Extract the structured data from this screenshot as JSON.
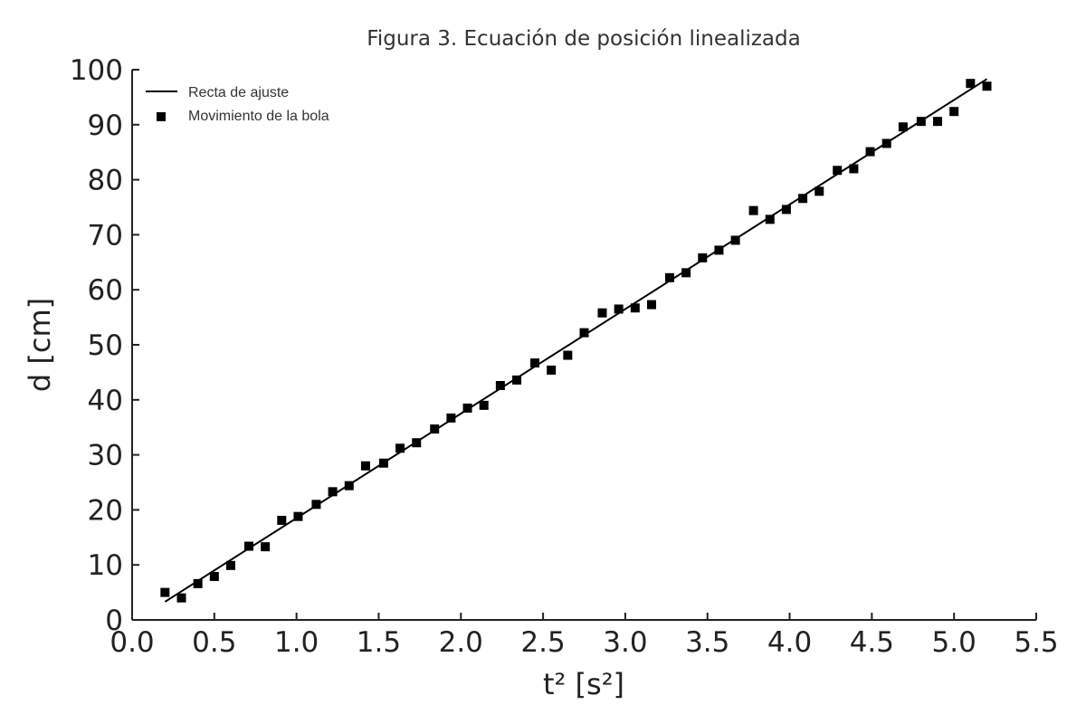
{
  "chart_data": {
    "type": "scatter",
    "title": "Figura 3. Ecuación de posición linealizada",
    "xlabel": "t² [s²]",
    "ylabel": "d [cm]",
    "xlim": [
      0.0,
      5.5
    ],
    "ylim": [
      0,
      100
    ],
    "x_ticks": [
      "0.0",
      "0.5",
      "1.0",
      "1.5",
      "2.0",
      "2.5",
      "3.0",
      "3.5",
      "4.0",
      "4.5",
      "5.0",
      "5.5"
    ],
    "y_ticks": [
      "0",
      "10",
      "20",
      "30",
      "40",
      "50",
      "60",
      "70",
      "80",
      "90",
      "100"
    ],
    "grid": false,
    "legend_position": "top-left",
    "color": "#000000",
    "fit_line": {
      "name": "Recta de ajuste",
      "x": [
        0.2,
        5.2
      ],
      "y": [
        3.3,
        98.3
      ]
    },
    "series": [
      {
        "name": "Movimiento de la bola",
        "marker": "square",
        "points": [
          [
            0.2,
            5.0
          ],
          [
            0.3,
            4.0
          ],
          [
            0.4,
            6.6
          ],
          [
            0.5,
            7.9
          ],
          [
            0.6,
            9.9
          ],
          [
            0.71,
            13.4
          ],
          [
            0.81,
            13.3
          ],
          [
            0.91,
            18.1
          ],
          [
            1.01,
            18.8
          ],
          [
            1.12,
            21.0
          ],
          [
            1.22,
            23.3
          ],
          [
            1.32,
            24.4
          ],
          [
            1.42,
            28.0
          ],
          [
            1.53,
            28.5
          ],
          [
            1.63,
            31.2
          ],
          [
            1.73,
            32.2
          ],
          [
            1.84,
            34.7
          ],
          [
            1.94,
            36.7
          ],
          [
            2.04,
            38.5
          ],
          [
            2.14,
            39.0
          ],
          [
            2.24,
            42.6
          ],
          [
            2.34,
            43.6
          ],
          [
            2.45,
            46.7
          ],
          [
            2.55,
            45.4
          ],
          [
            2.65,
            48.1
          ],
          [
            2.75,
            52.2
          ],
          [
            2.86,
            55.8
          ],
          [
            2.96,
            56.5
          ],
          [
            3.06,
            56.7
          ],
          [
            3.16,
            57.3
          ],
          [
            3.27,
            62.2
          ],
          [
            3.37,
            63.1
          ],
          [
            3.47,
            65.8
          ],
          [
            3.57,
            67.2
          ],
          [
            3.67,
            69.0
          ],
          [
            3.78,
            74.4
          ],
          [
            3.88,
            72.8
          ],
          [
            3.98,
            74.6
          ],
          [
            4.08,
            76.6
          ],
          [
            4.18,
            77.9
          ],
          [
            4.29,
            81.7
          ],
          [
            4.39,
            82.0
          ],
          [
            4.49,
            85.1
          ],
          [
            4.59,
            86.6
          ],
          [
            4.69,
            89.6
          ],
          [
            4.8,
            90.6
          ],
          [
            4.9,
            90.6
          ],
          [
            5.0,
            92.4
          ],
          [
            5.1,
            97.5
          ],
          [
            5.2,
            97.0
          ]
        ]
      }
    ]
  }
}
